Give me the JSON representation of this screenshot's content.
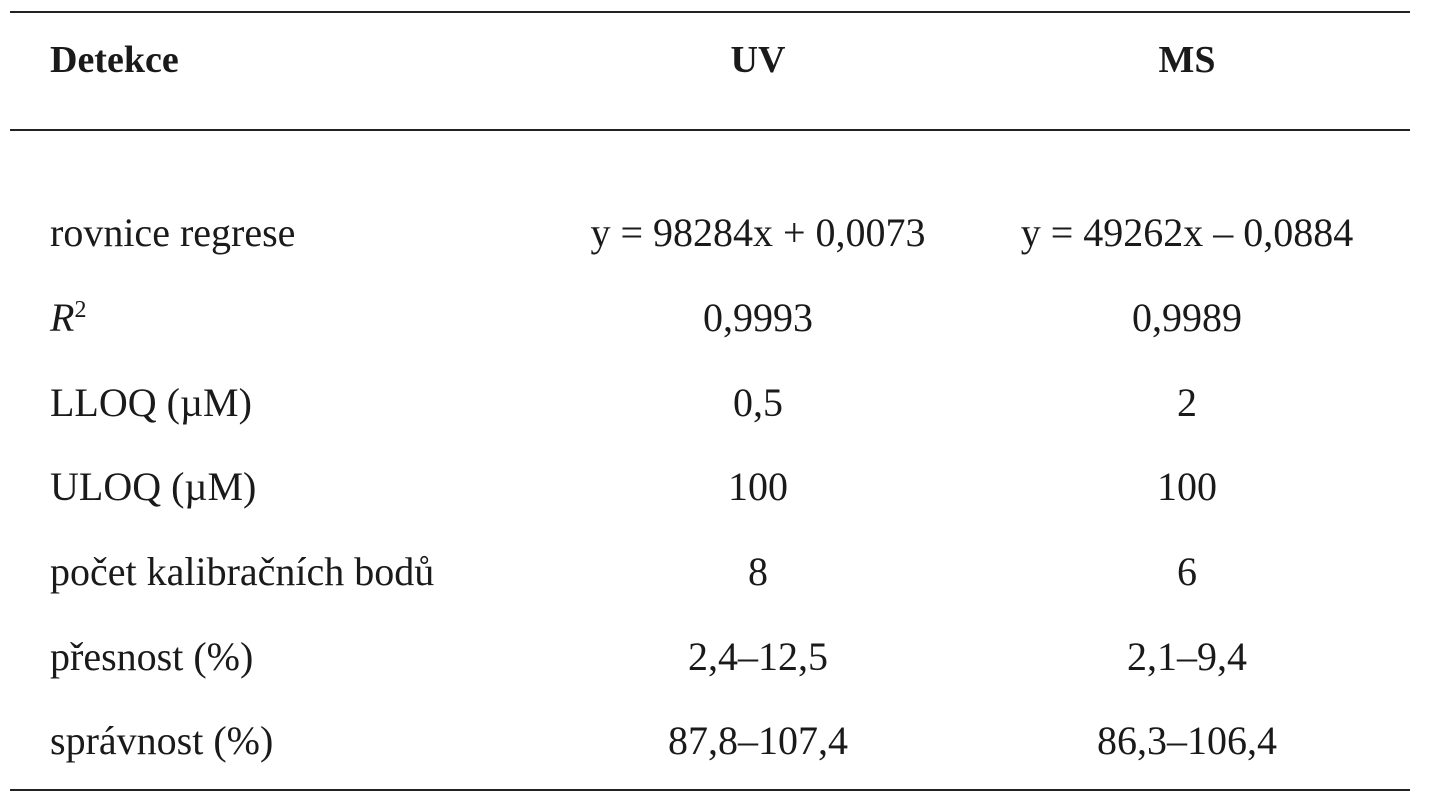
{
  "table": {
    "header": [
      "Detekce",
      "UV",
      "MS"
    ],
    "rows": [
      [
        "rovnice regrese",
        "y = 98284x + 0,0073",
        "y = 49262x – 0,0884"
      ],
      [
        {
          "base": "R",
          "sup": "2"
        },
        "0,9993",
        "0,9989"
      ],
      [
        "LLOQ (µM)",
        "0,5",
        "2"
      ],
      [
        "ULOQ (µM)",
        "100",
        "100"
      ],
      [
        "počet kalibračních bodů",
        "8",
        "6"
      ],
      [
        "přesnost (%)",
        "2,4–12,5",
        "2,1–9,4"
      ],
      [
        "správnost (%)",
        "87,8–107,4",
        "86,3–106,4"
      ]
    ]
  }
}
